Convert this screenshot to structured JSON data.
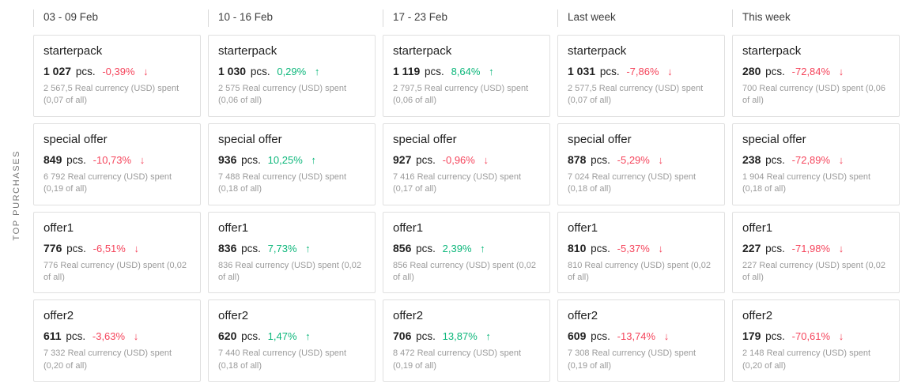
{
  "section_label": "TOP PURCHASES",
  "labels": {
    "pcs_suffix": "pcs."
  },
  "colors": {
    "up": "#0db77b",
    "down": "#f5455c"
  },
  "columns": [
    {
      "header": "03 - 09 Feb",
      "cards": [
        {
          "title": "starterpack",
          "pcs": "1 027",
          "change": "-0,39%",
          "direction": "down",
          "detail": "2 567,5 Real currency (USD) spent (0,07 of all)"
        },
        {
          "title": "special offer",
          "pcs": "849",
          "change": "-10,73%",
          "direction": "down",
          "detail": "6 792 Real currency (USD) spent (0,19 of all)"
        },
        {
          "title": "offer1",
          "pcs": "776",
          "change": "-6,51%",
          "direction": "down",
          "detail": "776 Real currency (USD) spent (0,02 of all)"
        },
        {
          "title": "offer2",
          "pcs": "611",
          "change": "-3,63%",
          "direction": "down",
          "detail": "7 332 Real currency (USD) spent (0,20 of all)"
        }
      ]
    },
    {
      "header": "10 - 16 Feb",
      "cards": [
        {
          "title": "starterpack",
          "pcs": "1 030",
          "change": "0,29%",
          "direction": "up",
          "detail": "2 575 Real currency (USD) spent (0,06 of all)"
        },
        {
          "title": "special offer",
          "pcs": "936",
          "change": "10,25%",
          "direction": "up",
          "detail": "7 488 Real currency (USD) spent (0,18 of all)"
        },
        {
          "title": "offer1",
          "pcs": "836",
          "change": "7,73%",
          "direction": "up",
          "detail": "836 Real currency (USD) spent (0,02 of all)"
        },
        {
          "title": "offer2",
          "pcs": "620",
          "change": "1,47%",
          "direction": "up",
          "detail": "7 440 Real currency (USD) spent (0,18 of all)"
        }
      ]
    },
    {
      "header": "17 - 23 Feb",
      "cards": [
        {
          "title": "starterpack",
          "pcs": "1 119",
          "change": "8,64%",
          "direction": "up",
          "detail": "2 797,5 Real currency (USD) spent (0,06 of all)"
        },
        {
          "title": "special offer",
          "pcs": "927",
          "change": "-0,96%",
          "direction": "down",
          "detail": "7 416 Real currency (USD) spent (0,17 of all)"
        },
        {
          "title": "offer1",
          "pcs": "856",
          "change": "2,39%",
          "direction": "up",
          "detail": "856 Real currency (USD) spent (0,02 of all)"
        },
        {
          "title": "offer2",
          "pcs": "706",
          "change": "13,87%",
          "direction": "up",
          "detail": "8 472 Real currency (USD) spent (0,19 of all)"
        }
      ]
    },
    {
      "header": "Last week",
      "cards": [
        {
          "title": "starterpack",
          "pcs": "1 031",
          "change": "-7,86%",
          "direction": "down",
          "detail": "2 577,5 Real currency (USD) spent (0,07 of all)"
        },
        {
          "title": "special offer",
          "pcs": "878",
          "change": "-5,29%",
          "direction": "down",
          "detail": "7 024 Real currency (USD) spent (0,18 of all)"
        },
        {
          "title": "offer1",
          "pcs": "810",
          "change": "-5,37%",
          "direction": "down",
          "detail": "810 Real currency (USD) spent (0,02 of all)"
        },
        {
          "title": "offer2",
          "pcs": "609",
          "change": "-13,74%",
          "direction": "down",
          "detail": "7 308 Real currency (USD) spent (0,19 of all)"
        }
      ]
    },
    {
      "header": "This week",
      "cards": [
        {
          "title": "starterpack",
          "pcs": "280",
          "change": "-72,84%",
          "direction": "down",
          "detail": "700 Real currency (USD) spent (0,06 of all)"
        },
        {
          "title": "special offer",
          "pcs": "238",
          "change": "-72,89%",
          "direction": "down",
          "detail": "1 904 Real currency (USD) spent (0,18 of all)"
        },
        {
          "title": "offer1",
          "pcs": "227",
          "change": "-71,98%",
          "direction": "down",
          "detail": "227 Real currency (USD) spent (0,02 of all)"
        },
        {
          "title": "offer2",
          "pcs": "179",
          "change": "-70,61%",
          "direction": "down",
          "detail": "2 148 Real currency (USD) spent (0,20 of all)"
        }
      ]
    }
  ]
}
